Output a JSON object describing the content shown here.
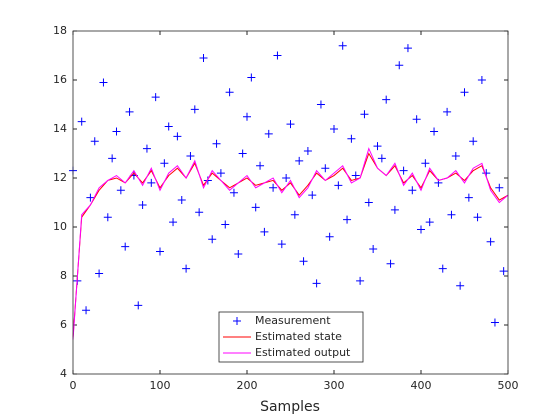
{
  "chart_data": {
    "type": "scatter_lines",
    "xlabel": "Samples",
    "xlim": [
      0,
      500
    ],
    "xticks": [
      0,
      100,
      200,
      300,
      400,
      500
    ],
    "ylim": [
      4,
      18
    ],
    "yticks": [
      4,
      6,
      8,
      10,
      12,
      14,
      16,
      18
    ],
    "legend": "south",
    "series": [
      {
        "name": "Measurement",
        "color": "#0000ff",
        "marker": "+",
        "x": [
          0,
          5,
          10,
          15,
          20,
          25,
          30,
          35,
          40,
          45,
          50,
          55,
          60,
          65,
          70,
          75,
          80,
          85,
          90,
          95,
          100,
          105,
          110,
          115,
          120,
          125,
          130,
          135,
          140,
          145,
          150,
          155,
          160,
          165,
          170,
          175,
          180,
          185,
          190,
          195,
          200,
          205,
          210,
          215,
          220,
          225,
          230,
          235,
          240,
          245,
          250,
          255,
          260,
          265,
          270,
          275,
          280,
          285,
          290,
          295,
          300,
          305,
          310,
          315,
          320,
          325,
          330,
          335,
          340,
          345,
          350,
          355,
          360,
          365,
          370,
          375,
          380,
          385,
          390,
          395,
          400,
          405,
          410,
          415,
          420,
          425,
          430,
          435,
          440,
          445,
          450,
          455,
          460,
          465,
          470,
          475,
          480,
          485,
          490,
          495
        ],
        "values": [
          12.3,
          7.8,
          14.3,
          6.6,
          11.2,
          13.5,
          8.1,
          15.9,
          10.4,
          12.8,
          13.9,
          11.5,
          9.2,
          14.7,
          12.1,
          6.8,
          10.9,
          13.2,
          11.8,
          15.3,
          9.0,
          12.6,
          14.1,
          10.2,
          13.7,
          11.1,
          8.3,
          12.9,
          14.8,
          10.6,
          16.9,
          11.9,
          9.5,
          13.4,
          12.2,
          10.1,
          15.5,
          11.4,
          8.9,
          13.0,
          14.5,
          16.1,
          10.8,
          12.5,
          9.8,
          13.8,
          11.6,
          17.0,
          9.3,
          12.0,
          14.2,
          10.5,
          12.7,
          8.6,
          13.1,
          11.3,
          7.7,
          15.0,
          12.4,
          9.6,
          14.0,
          11.7,
          17.4,
          10.3,
          13.6,
          12.1,
          7.8,
          14.6,
          11.0,
          9.1,
          13.3,
          12.8,
          15.2,
          8.5,
          10.7,
          16.6,
          12.3,
          17.3,
          11.5,
          14.4,
          9.9,
          12.6,
          10.2,
          13.9,
          11.8,
          8.3,
          14.7,
          10.5,
          12.9,
          7.6,
          15.5,
          11.2,
          13.5,
          10.4,
          16.0,
          12.2,
          9.4,
          6.1,
          11.6,
          8.2
        ]
      },
      {
        "name": "Estimated state",
        "color": "#ff0000",
        "marker": "line",
        "x": [
          0,
          10,
          20,
          30,
          40,
          50,
          60,
          70,
          80,
          90,
          100,
          110,
          120,
          130,
          140,
          150,
          160,
          170,
          180,
          190,
          200,
          210,
          220,
          230,
          240,
          250,
          260,
          270,
          280,
          290,
          300,
          310,
          320,
          330,
          340,
          350,
          360,
          370,
          380,
          390,
          400,
          410,
          420,
          430,
          440,
          450,
          460,
          470,
          480,
          490,
          500
        ],
        "values": [
          5.5,
          10.4,
          10.9,
          11.5,
          11.9,
          12.0,
          11.8,
          12.2,
          11.8,
          12.3,
          11.6,
          12.1,
          12.4,
          12.0,
          12.6,
          11.7,
          12.2,
          11.9,
          11.6,
          11.8,
          12.0,
          11.7,
          11.8,
          11.9,
          11.5,
          11.8,
          11.3,
          11.7,
          12.2,
          11.9,
          12.1,
          12.4,
          11.9,
          12.0,
          13.0,
          12.4,
          12.1,
          12.5,
          11.8,
          12.1,
          11.6,
          12.3,
          11.9,
          12.0,
          12.2,
          11.9,
          12.3,
          12.5,
          11.6,
          11.1,
          11.3
        ]
      },
      {
        "name": "Estimated output",
        "color": "#ff00ff",
        "marker": "line",
        "x": [
          0,
          10,
          20,
          30,
          40,
          50,
          60,
          70,
          80,
          90,
          100,
          110,
          120,
          130,
          140,
          150,
          160,
          170,
          180,
          190,
          200,
          210,
          220,
          230,
          240,
          250,
          260,
          270,
          280,
          290,
          300,
          310,
          320,
          330,
          340,
          350,
          360,
          370,
          380,
          390,
          400,
          410,
          420,
          430,
          440,
          450,
          460,
          470,
          480,
          490,
          500
        ],
        "values": [
          5.4,
          10.5,
          10.9,
          11.6,
          11.9,
          12.1,
          11.8,
          12.3,
          11.7,
          12.4,
          11.5,
          12.2,
          12.5,
          12.0,
          12.7,
          11.6,
          12.3,
          11.9,
          11.5,
          11.8,
          12.1,
          11.6,
          11.8,
          12.0,
          11.4,
          11.9,
          11.2,
          11.6,
          12.3,
          11.9,
          12.2,
          12.5,
          11.8,
          12.0,
          13.2,
          12.4,
          12.1,
          12.6,
          11.7,
          12.2,
          11.5,
          12.4,
          11.9,
          12.0,
          12.3,
          11.8,
          12.4,
          12.6,
          11.5,
          11.0,
          11.3
        ]
      }
    ]
  }
}
